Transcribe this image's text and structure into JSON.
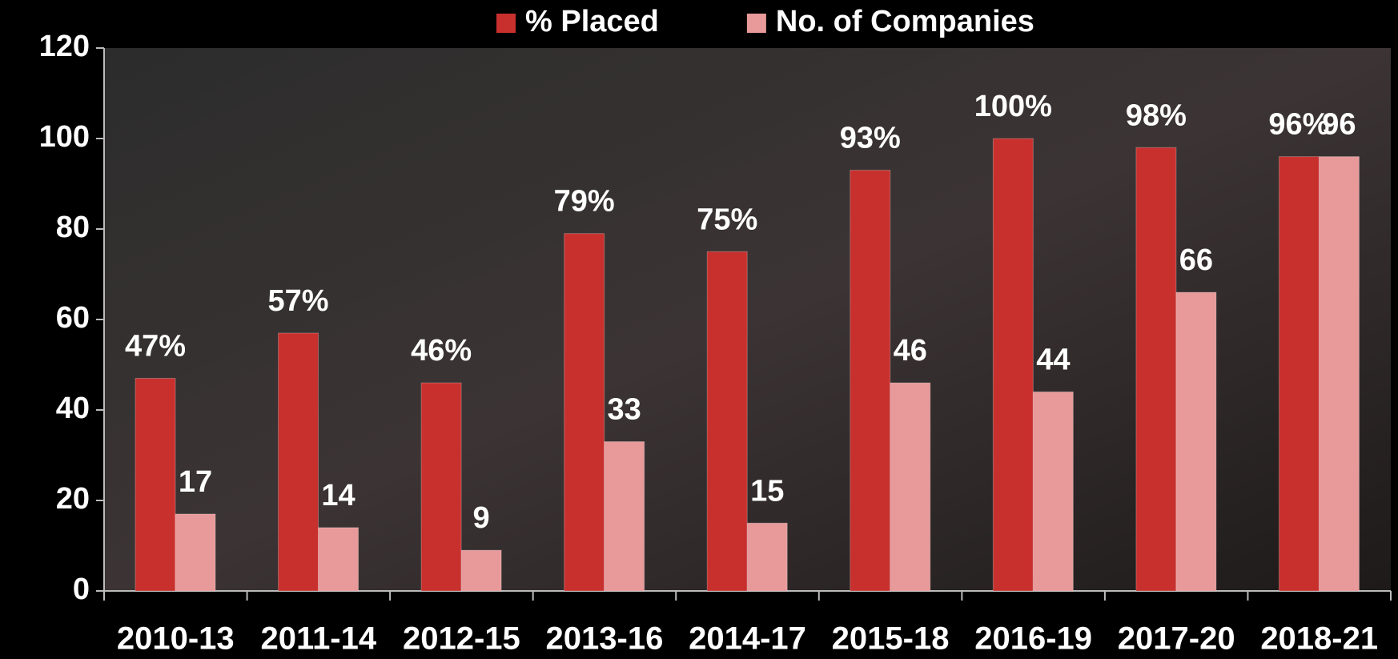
{
  "chart_data": {
    "type": "bar",
    "categories": [
      "2010-13",
      "2011-14",
      "2012-15",
      "2013-16",
      "2014-17",
      "2015-18",
      "2016-19",
      "2017-20",
      "2018-21"
    ],
    "series": [
      {
        "name": "% Placed",
        "color": "#c8302e",
        "values": [
          47,
          57,
          46,
          79,
          75,
          93,
          100,
          98,
          96
        ],
        "value_labels": [
          "47%",
          "57%",
          "46%",
          "79%",
          "75%",
          "93%",
          "100%",
          "98%",
          "96%"
        ]
      },
      {
        "name": "No. of Companies",
        "color": "#e8999a",
        "values": [
          17,
          14,
          9,
          33,
          15,
          46,
          44,
          66,
          96
        ]
      }
    ],
    "ylim": [
      0,
      120
    ],
    "yticks": [
      0,
      20,
      40,
      60,
      80,
      100,
      120
    ],
    "grid": false,
    "legend": "top"
  }
}
